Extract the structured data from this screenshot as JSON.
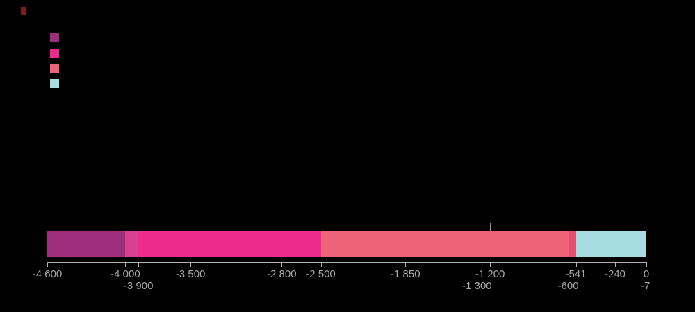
{
  "background_color": "#000000",
  "title_mark": {
    "color": "#7e1c1c"
  },
  "legend": {
    "position": "top-left",
    "items": [
      {
        "color": "#9e2f7f"
      },
      {
        "color": "#ee2b8d"
      },
      {
        "color": "#ef6379"
      },
      {
        "color": "#a6dce2"
      }
    ]
  },
  "chart_data": {
    "type": "bar",
    "subtype": "horizontal-stacked-timeline",
    "title": "",
    "xlabel": "",
    "ylabel": "",
    "xlim": [
      -4600,
      0
    ],
    "grid": false,
    "axis_color": "#b3b3b3",
    "label_color": "#a8a8a8",
    "segments": [
      {
        "start": -4600,
        "end": -4000,
        "color": "#9e2f7f"
      },
      {
        "start": -4000,
        "end": -3900,
        "color": "#d84090"
      },
      {
        "start": -3900,
        "end": -2500,
        "color": "#ee2b8d"
      },
      {
        "start": -2500,
        "end": -600,
        "color": "#ef6379"
      },
      {
        "start": -600,
        "end": -541,
        "color": "#e64f6d"
      },
      {
        "start": -541,
        "end": 0,
        "color": "#a6dce2"
      }
    ],
    "ticks": [
      {
        "value": -4600,
        "label": "-4 600",
        "row": 1
      },
      {
        "value": -4000,
        "label": "-4 000",
        "row": 1
      },
      {
        "value": -3900,
        "label": "-3 900",
        "row": 2
      },
      {
        "value": -3500,
        "label": "-3 500",
        "row": 1
      },
      {
        "value": -2800,
        "label": "-2 800",
        "row": 1
      },
      {
        "value": -2500,
        "label": "-2 500",
        "row": 1
      },
      {
        "value": -1850,
        "label": "-1 850",
        "row": 1
      },
      {
        "value": -1300,
        "label": "-1 300",
        "row": 2
      },
      {
        "value": -1200,
        "label": "-1 200",
        "row": 1
      },
      {
        "value": -600,
        "label": "-600",
        "row": 2
      },
      {
        "value": -541,
        "label": "-541",
        "row": 1
      },
      {
        "value": -240,
        "label": "-240",
        "row": 1
      },
      {
        "value": -7,
        "label": "-7",
        "row": 2
      },
      {
        "value": 0,
        "label": "0",
        "row": 1
      }
    ],
    "marker": {
      "value": -1200,
      "color": "#9a9a9a"
    }
  }
}
